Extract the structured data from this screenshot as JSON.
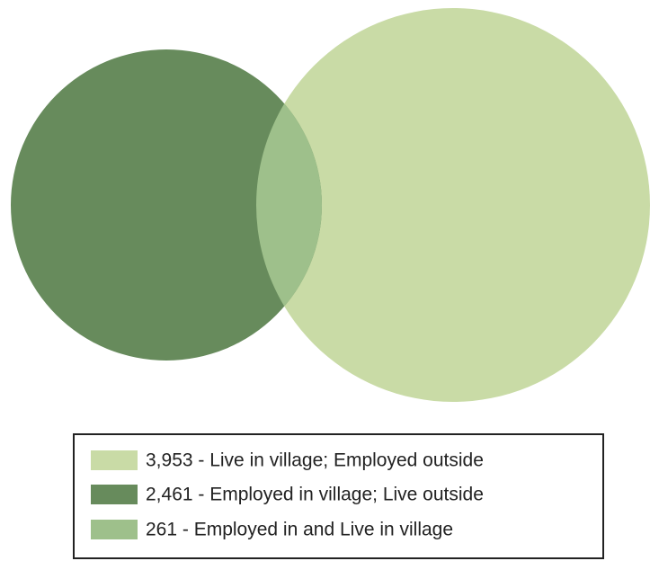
{
  "chart_data": {
    "type": "venn",
    "series": [
      {
        "name": "3,953 - Live in village; Employed outside",
        "color": "#c9dba6",
        "values": [
          3953
        ]
      },
      {
        "name": "2,461 - Employed in village; Live outside",
        "color": "#678b5c",
        "values": [
          2461
        ]
      },
      {
        "name": "261 - Employed in and Live in village",
        "color": "#9ec08b",
        "values": [
          261
        ]
      }
    ],
    "legend": "bottom"
  }
}
